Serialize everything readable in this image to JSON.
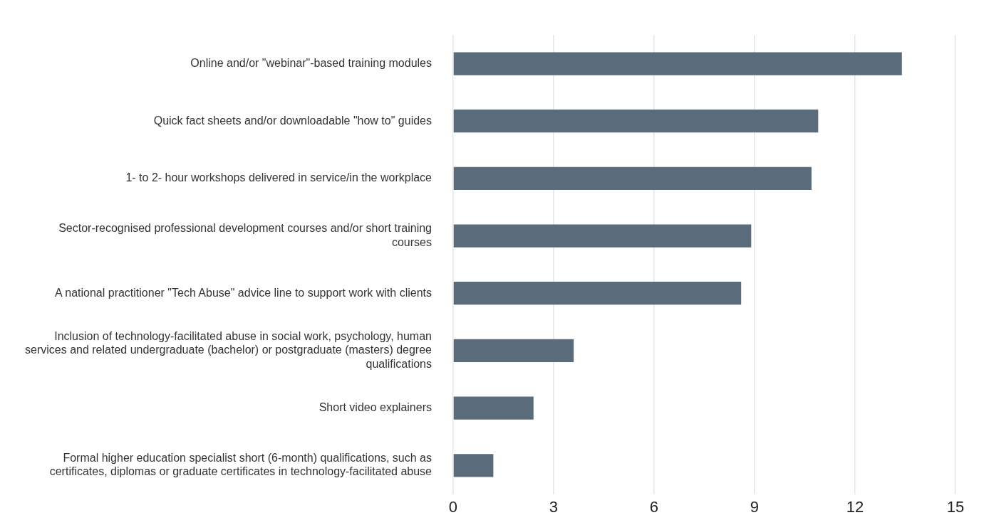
{
  "chart_data": {
    "type": "bar",
    "orientation": "horizontal",
    "categories": [
      "Online and/or \"webinar\"-based training modules",
      "Quick fact sheets and/or downloadable \"how to\" guides",
      "1- to 2- hour workshops delivered in service/in the workplace",
      "Sector-recognised professional development courses and/or short training courses",
      "A national practitioner \"Tech Abuse\" advice line to support work with clients",
      "Inclusion of technology-facilitated abuse in social work, psychology, human services and related undergraduate (bachelor) or postgraduate (masters) degree qualifications",
      "Short video explainers",
      "Formal higher education specialist short (6-month) qualifications, such as certificates, diplomas or graduate certificates in technology-facilitated abuse"
    ],
    "values": [
      13.4,
      10.9,
      10.7,
      8.9,
      8.6,
      3.6,
      2.4,
      1.2
    ],
    "color": "#5a6b7b",
    "xlim": [
      0,
      15
    ],
    "xticks": [
      0,
      3,
      6,
      9,
      12,
      15
    ],
    "grid": "x"
  }
}
